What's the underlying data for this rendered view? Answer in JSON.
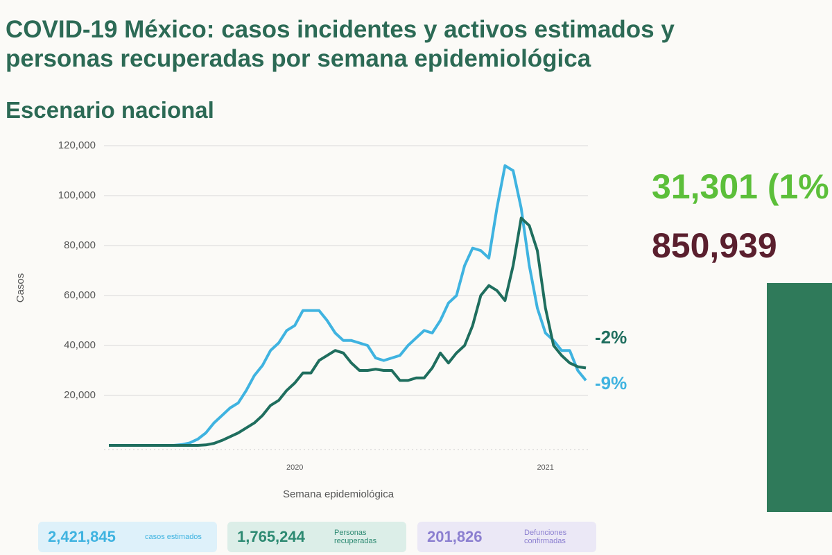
{
  "chart_data": {
    "type": "line",
    "title": "COVID-19 México: casos incidentes y activos estimados y personas recuperadas por semana epidemiológica",
    "subtitle": "Escenario nacional",
    "y_label": "Casos",
    "x_label": "Semana epidemiológica",
    "categories": [
      null,
      null,
      null,
      null,
      null,
      null,
      null,
      null,
      null,
      null,
      null,
      null,
      null,
      null,
      null,
      null,
      null,
      null,
      null,
      null,
      null,
      null,
      null,
      "2020",
      null,
      null,
      null,
      null,
      null,
      null,
      null,
      null,
      null,
      null,
      null,
      null,
      null,
      null,
      null,
      null,
      null,
      null,
      null,
      null,
      null,
      null,
      null,
      null,
      null,
      null,
      null,
      null,
      null,
      null,
      "2021",
      null,
      null,
      null,
      null,
      null
    ],
    "series": [
      {
        "color": "#3fb3e0",
        "values": [
          0,
          0,
          0,
          0,
          0,
          0,
          0,
          0,
          0,
          300,
          1000,
          2500,
          5000,
          9000,
          12000,
          15000,
          17000,
          22000,
          28000,
          32000,
          38000,
          41000,
          46000,
          48000,
          54000,
          54000,
          54000,
          50000,
          45000,
          42000,
          42000,
          41000,
          40000,
          35000,
          34000,
          35000,
          36000,
          40000,
          43000,
          46000,
          45000,
          50000,
          57000,
          60000,
          72000,
          79000,
          78000,
          75000,
          95000,
          112000,
          110000,
          95000,
          72000,
          55000,
          45000,
          42000,
          38000,
          38000,
          30000,
          26000
        ]
      },
      {
        "color": "#1f6e5e",
        "values": [
          0,
          0,
          0,
          0,
          0,
          0,
          0,
          0,
          0,
          0,
          0,
          0,
          200,
          800,
          2000,
          3500,
          5000,
          7000,
          9000,
          12000,
          16000,
          18000,
          22000,
          25000,
          29000,
          29000,
          34000,
          36000,
          38000,
          37000,
          33000,
          30000,
          30000,
          30500,
          30000,
          30000,
          26000,
          26000,
          27000,
          27000,
          31000,
          37000,
          33000,
          37000,
          40000,
          48000,
          60000,
          64000,
          62000,
          58000,
          72000,
          91000,
          88000,
          78000,
          55000,
          40000,
          36000,
          33000,
          31500,
          31000
        ]
      }
    ],
    "annotations": [
      {
        "text": "-2%",
        "color": "#1f6e5e"
      },
      {
        "text": "-9%",
        "color": "#3fb3e0"
      }
    ],
    "ylim": [
      0,
      120000
    ],
    "yticks": [
      {
        "value": 20000,
        "label": "20,000"
      },
      {
        "value": 40000,
        "label": "40,000"
      },
      {
        "value": 60000,
        "label": "60,000"
      },
      {
        "value": 80000,
        "label": "80,000"
      },
      {
        "value": 100000,
        "label": "100,000"
      },
      {
        "value": 120000,
        "label": "120,000"
      }
    ],
    "grid": true
  },
  "headline": {
    "incident": "31,301 (1%",
    "active": "850,939"
  },
  "summary": [
    {
      "value": "2,421,845",
      "label": "casos estimados"
    },
    {
      "value": "1,765,244",
      "label": "Personas recuperadas"
    },
    {
      "value": "201,826",
      "label": "Defunciones confirmadas"
    }
  ]
}
